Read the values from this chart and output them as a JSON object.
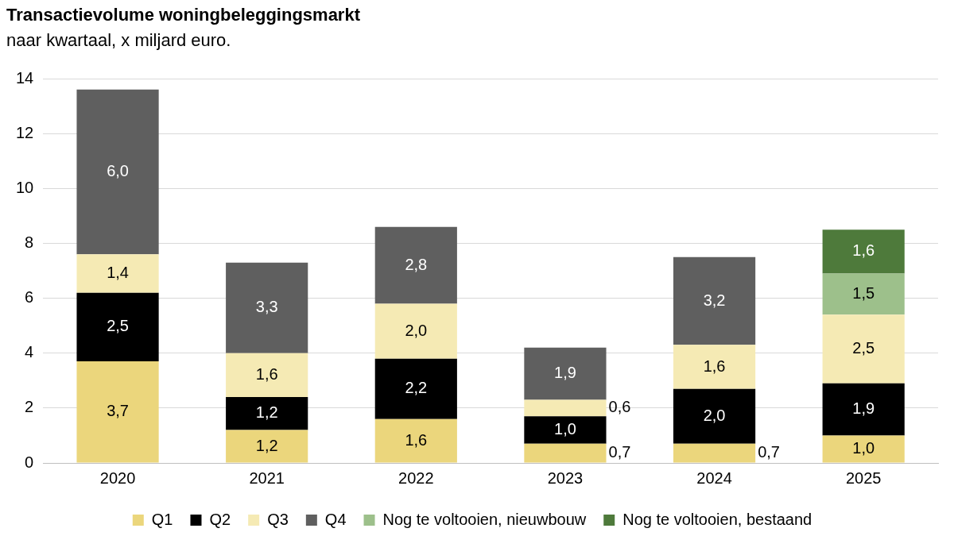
{
  "chart_data": {
    "type": "bar",
    "title": "Transactievolume woningbeleggingsmarkt",
    "subtitle": "naar kwartaal, x miljard euro.",
    "categories": [
      "2020",
      "2021",
      "2022",
      "2023",
      "2024",
      "2025"
    ],
    "stacked": true,
    "ylim": [
      0,
      14
    ],
    "yticks": [
      0,
      2,
      4,
      6,
      8,
      10,
      12,
      14
    ],
    "grid": "y",
    "legend": "bottom",
    "series": [
      {
        "name": "Q1",
        "color": "#ebd67c",
        "values": [
          3.7,
          1.2,
          1.6,
          0.7,
          0.7,
          1.0
        ],
        "value_labels": [
          "3,7",
          "1,2",
          "1,6",
          "0,7",
          "0,7",
          "1,0"
        ]
      },
      {
        "name": "Q2",
        "color": "#000000",
        "values": [
          2.5,
          1.2,
          2.2,
          1.0,
          2.0,
          1.9
        ],
        "value_labels": [
          "2,5",
          "1,2",
          "2,2",
          "1,0",
          "2,0",
          "1,9"
        ]
      },
      {
        "name": "Q3",
        "color": "#f5eab4",
        "values": [
          1.4,
          1.6,
          2.0,
          0.6,
          1.6,
          2.5
        ],
        "value_labels": [
          "1,4",
          "1,6",
          "2,0",
          "0,6",
          "1,6",
          "2,5"
        ]
      },
      {
        "name": "Q4",
        "color": "#5f5f5f",
        "values": [
          6.0,
          3.3,
          2.8,
          1.9,
          3.2,
          null
        ],
        "value_labels": [
          "6,0",
          "3,3",
          "2,8",
          "1,9",
          "3,2",
          null
        ]
      },
      {
        "name": "Nog te voltooien, nieuwbouw",
        "color": "#9dc08b",
        "values": [
          null,
          null,
          null,
          null,
          null,
          1.5
        ],
        "value_labels": [
          null,
          null,
          null,
          null,
          null,
          "1,5"
        ]
      },
      {
        "name": "Nog te voltooien, bestaand",
        "color": "#4e7a3b",
        "values": [
          null,
          null,
          null,
          null,
          null,
          1.6
        ],
        "value_labels": [
          null,
          null,
          null,
          null,
          null,
          "1,6"
        ]
      }
    ]
  }
}
